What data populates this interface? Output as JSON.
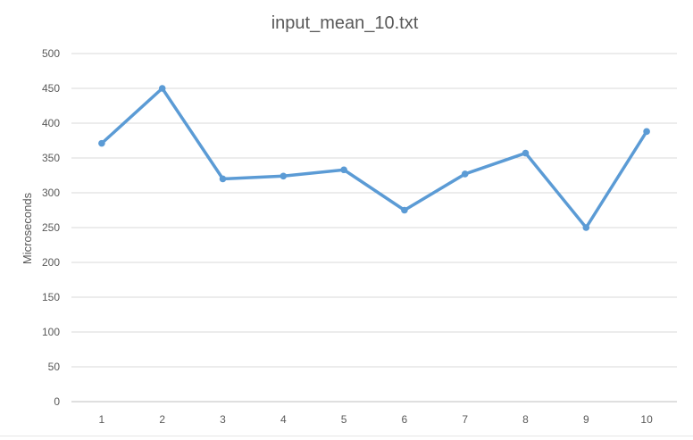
{
  "chart_data": {
    "type": "line",
    "title": "input_mean_10.txt",
    "xlabel": "",
    "ylabel": "Microseconds",
    "ylim": [
      0,
      500
    ],
    "y_ticks": [
      0,
      50,
      100,
      150,
      200,
      250,
      300,
      350,
      400,
      450,
      500
    ],
    "categories": [
      "1",
      "2",
      "3",
      "4",
      "5",
      "6",
      "7",
      "8",
      "9",
      "10"
    ],
    "series": [
      {
        "name": "input_mean_10.txt",
        "color": "#5b9bd5",
        "values": [
          371,
          450,
          320,
          324,
          333,
          275,
          327,
          357,
          250,
          388
        ]
      }
    ],
    "grid": true,
    "legend": "none"
  }
}
